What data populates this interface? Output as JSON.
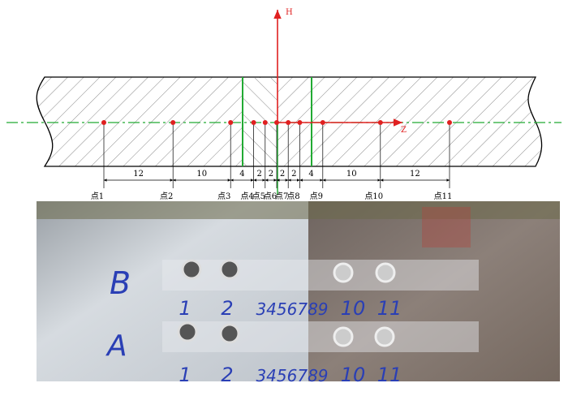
{
  "axes": {
    "h": "H",
    "z": "Z"
  },
  "dimensions": [
    12,
    10,
    4,
    2,
    2,
    2,
    2,
    4,
    10,
    12
  ],
  "points": [
    "点1",
    "点2",
    "点3",
    "点4",
    "点5",
    "点6",
    "点7",
    "点8",
    "点9",
    "点10",
    "点11"
  ],
  "photo": {
    "row_b": "B",
    "row_a": "A",
    "labels_b": [
      "1",
      "2",
      "3456789",
      "10",
      "11"
    ],
    "labels_a": [
      "1",
      "2",
      "3456789",
      "10",
      "11"
    ]
  }
}
